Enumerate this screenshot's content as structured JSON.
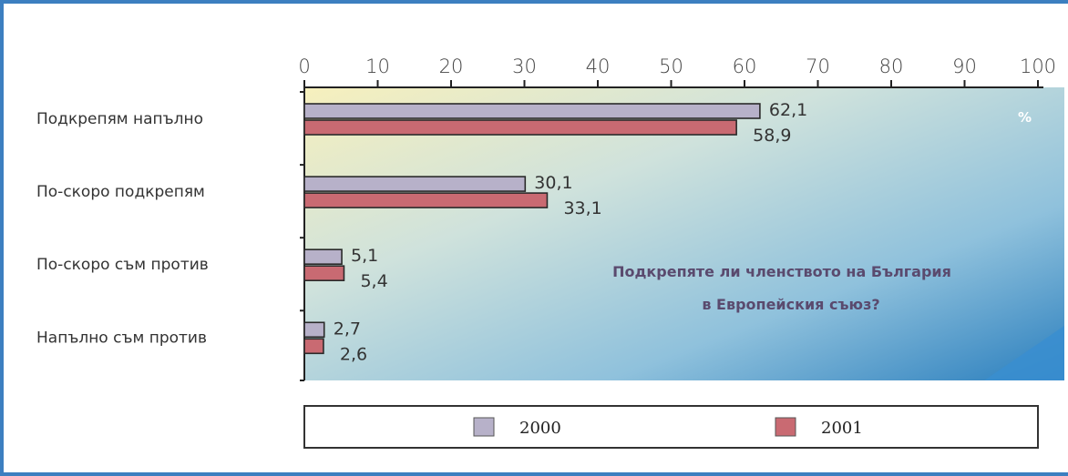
{
  "chart_data": {
    "type": "bar",
    "orientation": "horizontal",
    "categories": [
      "Подкрепям напълно",
      "По-скоро подкрепям",
      "По-скоро съм против",
      "Напълно съм против"
    ],
    "series": [
      {
        "name": "2000",
        "values": [
          62.1,
          30.1,
          5.1,
          2.7
        ],
        "labels": [
          "62,1",
          "30,1",
          "5,1",
          "2,7"
        ],
        "color": "#b7b1c9"
      },
      {
        "name": "2001",
        "values": [
          58.9,
          33.1,
          5.4,
          2.6
        ],
        "labels": [
          "58,9",
          "33,1",
          "5,4",
          "2,6"
        ],
        "color": "#c96a72"
      }
    ],
    "xlim": [
      0,
      100
    ],
    "xticks": [
      "0",
      "10",
      "20",
      "30",
      "40",
      "50",
      "60",
      "70",
      "80",
      "90",
      "100"
    ],
    "unit": "%",
    "annotation": [
      "Подкрепяте ли членството на България",
      "в Европейския съюз?"
    ],
    "legend_position": "bottom",
    "grid": false
  },
  "colors": {
    "frame": "#3c7fc0",
    "plot_gradient_light": "#f6efc0",
    "plot_gradient_mid": "#b8d6e2",
    "plot_gradient_dark": "#2f83bf"
  }
}
